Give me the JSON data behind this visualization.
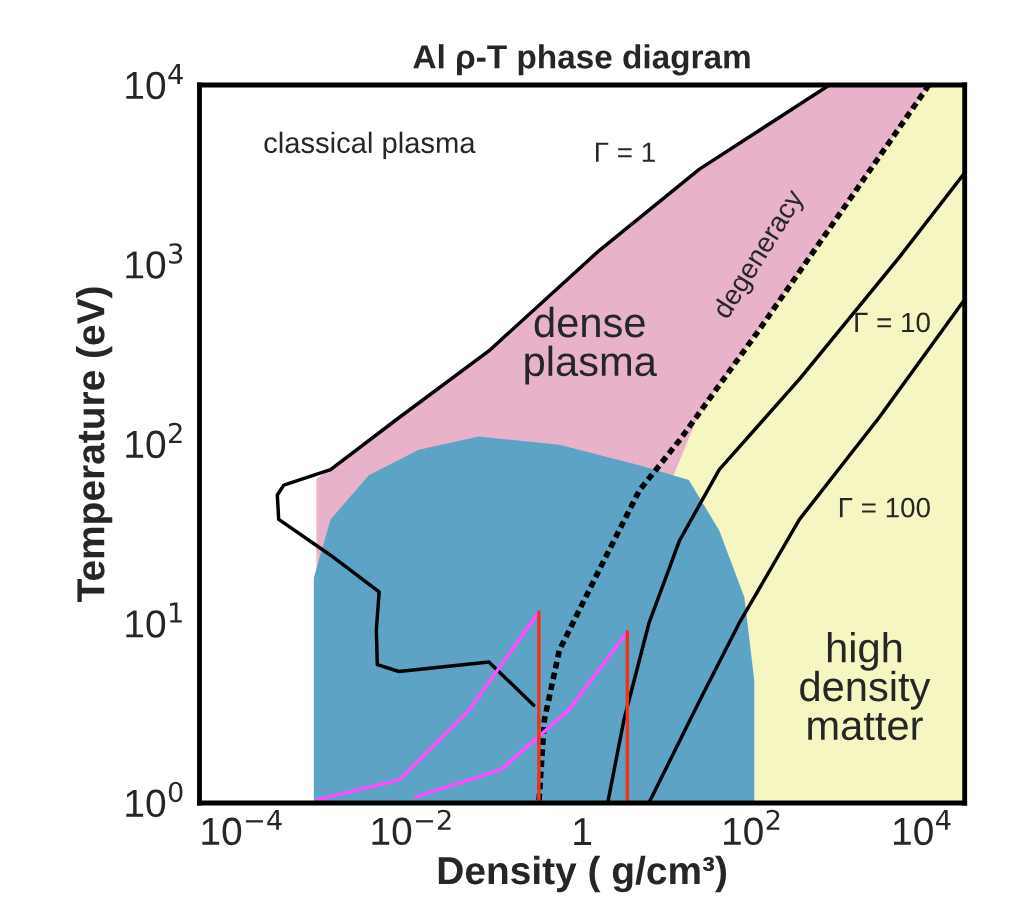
{
  "chart_data": {
    "type": "line",
    "title": "Al ρ-T phase diagram",
    "xlabel": "Density ( g/cm³)",
    "ylabel": "Temperature (eV)",
    "log": "xy",
    "grid": false,
    "xlim": [
      3.16e-05,
      31600
    ],
    "ylim": [
      1,
      10000
    ],
    "xticks": [
      {
        "value": 0.0001,
        "label": "10$^{−4}$"
      },
      {
        "value": 0.01,
        "label": "10$^{−2}$"
      },
      1,
      {
        "value": 100,
        "label": "10$^{2}$"
      },
      {
        "value": 10000,
        "label": "10$^{4}$"
      }
    ],
    "yticks": [
      {
        "value": 1,
        "label": "10$^{0}$"
      },
      {
        "value": 10,
        "label": "10$^{1}$"
      },
      {
        "value": 100,
        "label": "10$^{2}$"
      },
      {
        "value": 1000,
        "label": "10$^{3}$"
      },
      {
        "value": 10000,
        "label": "10$^{4}$"
      }
    ],
    "series": [
      {
        "type": "area",
        "color": "#e8b2cb",
        "x": [
          0.00075,
          0.0041,
          0.08,
          0.31,
          1.6,
          24,
          120,
          810,
          1400,
          12000
        ],
        "values": [
          64,
          113,
          330,
          600,
          1200,
          3400,
          5500,
          10000,
          10000,
          10000
        ]
      },
      {
        "type": "area",
        "color": "#f6f6c2",
        "x": [
          0.31,
          24,
          120,
          1400,
          12000,
          31600
        ],
        "values": [
          1,
          150,
          430,
          2300,
          10000,
          10000
        ]
      },
      {
        "type": "area",
        "color": "#5ca3c6",
        "x": [
          0.0007,
          0.0011,
          0.0031,
          0.012,
          0.061,
          0.54,
          4.7,
          18,
          41,
          81,
          106
        ],
        "values": [
          18,
          38,
          67,
          93,
          110,
          99,
          76,
          63,
          33,
          14,
          4.8
        ]
      },
      {
        "color": "#000000",
        "line_style": "solid",
        "x": [
          810,
          24,
          1.6,
          0.08,
          0.007,
          0.0011,
          0.00031,
          0.00026,
          0.00027,
          0.0011,
          0.0041,
          0.0038,
          0.0039,
          0.007,
          0.08,
          0.27
        ],
        "values": [
          10000,
          3400,
          1200,
          330,
          140,
          72,
          59,
          52,
          38,
          24,
          15,
          9.2,
          5.9,
          5.4,
          6.1,
          3.5
        ]
      },
      {
        "color": "#000000",
        "line_style": "dashed",
        "x": [
          12000,
          1400,
          120,
          14,
          4.7,
          1.6,
          0.54,
          0.36,
          0.31
        ],
        "values": [
          10000,
          2300,
          430,
          105,
          55,
          20,
          7.1,
          2.9,
          1
        ]
      },
      {
        "color": "#000000",
        "line_style": "solid",
        "x": [
          31000,
          5400,
          360,
          41,
          14,
          6.1,
          3.1,
          2.0
        ],
        "values": [
          3200,
          1100,
          230,
          72,
          29,
          10,
          2.9,
          1
        ]
      },
      {
        "color": "#000000",
        "line_style": "solid",
        "x": [
          31000,
          3100,
          360,
          70,
          24,
          6.1
        ],
        "values": [
          630,
          140,
          38,
          10,
          3.7,
          1
        ]
      },
      {
        "color": "#ff4dff",
        "line_style": "solid",
        "x": [
          0.00076,
          0.007,
          0.047,
          0.31
        ],
        "values": [
          1.04,
          1.34,
          3.3,
          11.6
        ]
      },
      {
        "color": "#ff4dff",
        "line_style": "solid",
        "x": [
          0.011,
          0.11,
          0.7,
          3.4
        ],
        "values": [
          1.08,
          1.53,
          3.3,
          9.0
        ]
      },
      {
        "color": "#ee3322",
        "line_style": "solid",
        "x": [
          0.31,
          0.31
        ],
        "values": [
          1,
          11.6
        ]
      },
      {
        "color": "#ee3322",
        "line_style": "solid",
        "x": [
          3.4,
          3.4
        ],
        "values": [
          1,
          9.0
        ]
      }
    ],
    "annotations": [
      "classical plasma",
      "Γ = 1",
      "degeneracy",
      "dense\nplasma",
      "Γ = 10",
      "Γ = 100",
      "high\ndensity\nmatter"
    ]
  }
}
